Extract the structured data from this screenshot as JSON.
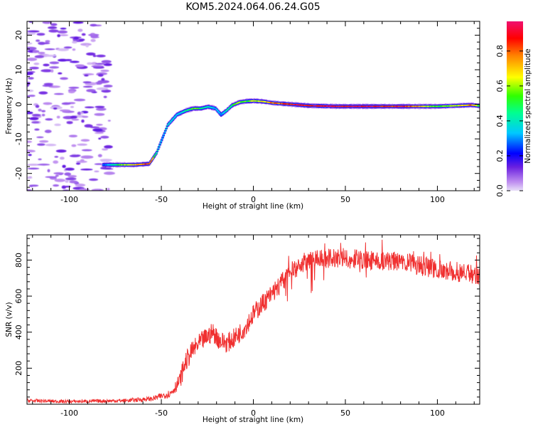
{
  "title": "KOM5.2024.064.06.24.G05",
  "colors": {
    "snr_line": "#f03030",
    "axis": "#000000"
  },
  "chart_data": [
    {
      "type": "heatmap",
      "xlabel": "Height of straight line (km)",
      "ylabel": "Frequency (Hz)",
      "xlim": [
        -123,
        123
      ],
      "ylim": [
        -25,
        24
      ],
      "xticks": [
        -100,
        -50,
        0,
        50,
        100
      ],
      "yticks": [
        -20,
        -10,
        0,
        10,
        20
      ],
      "colorbar": {
        "label": "Normalized spectral amplitude",
        "ticks": [
          0.0,
          0.2,
          0.4,
          0.6,
          0.8
        ],
        "tick_labels": [
          "0.0",
          "0.2",
          "0.4",
          "0.6",
          "0.8"
        ],
        "range": [
          0,
          0.97
        ],
        "placement": "right"
      },
      "ridge": {
        "x": [
          -82,
          -75,
          -65,
          -57,
          -53,
          -50,
          -47,
          -42,
          -37,
          -33,
          -29,
          -25,
          -21,
          -18,
          -15,
          -12,
          -8,
          -4,
          0,
          5,
          10,
          20,
          30,
          45,
          60,
          80,
          100,
          110,
          118,
          123
        ],
        "y": [
          -17.5,
          -17.5,
          -17.5,
          -17.2,
          -14,
          -10,
          -6,
          -3,
          -1.8,
          -1.2,
          -1.2,
          -0.7,
          -1.2,
          -3,
          -1.8,
          -0.3,
          0.6,
          0.9,
          1.0,
          0.8,
          0.4,
          0,
          -0.4,
          -0.6,
          -0.6,
          -0.6,
          -0.6,
          -0.4,
          -0.2,
          -0.5
        ],
        "amplitude": [
          0.25,
          0.5,
          0.75,
          0.9,
          0.45,
          0.35,
          0.4,
          0.35,
          0.45,
          0.6,
          0.5,
          0.4,
          0.35,
          0.3,
          0.45,
          0.5,
          0.6,
          0.55,
          0.65,
          0.7,
          0.8,
          0.9,
          0.97,
          0.95,
          0.95,
          0.9,
          0.55,
          0.65,
          0.8,
          0.5
        ]
      },
      "noise_region": {
        "x_range": [
          -123,
          -78
        ],
        "amplitude_range": [
          0.02,
          0.15
        ]
      }
    },
    {
      "type": "line",
      "xlabel": "Height of straight line (km)",
      "ylabel": "SNR (v/v)",
      "xlim": [
        -123,
        123
      ],
      "ylim": [
        0,
        940
      ],
      "xticks": [
        -100,
        -50,
        0,
        50,
        100
      ],
      "yticks": [
        200,
        400,
        600,
        800
      ],
      "envelope": {
        "x": [
          -123,
          -100,
          -70,
          -55,
          -45,
          -40,
          -37,
          -33,
          -28,
          -22,
          -18,
          -14,
          -10,
          -5,
          0,
          5,
          10,
          15,
          20,
          25,
          30,
          40,
          50,
          60,
          70,
          80,
          90,
          100,
          110,
          123
        ],
        "y": [
          20,
          15,
          20,
          30,
          60,
          130,
          230,
          300,
          350,
          400,
          350,
          340,
          370,
          420,
          500,
          560,
          610,
          670,
          730,
          770,
          800,
          810,
          810,
          800,
          795,
          790,
          770,
          750,
          735,
          720
        ]
      },
      "noise_amplitude": 55
    }
  ]
}
